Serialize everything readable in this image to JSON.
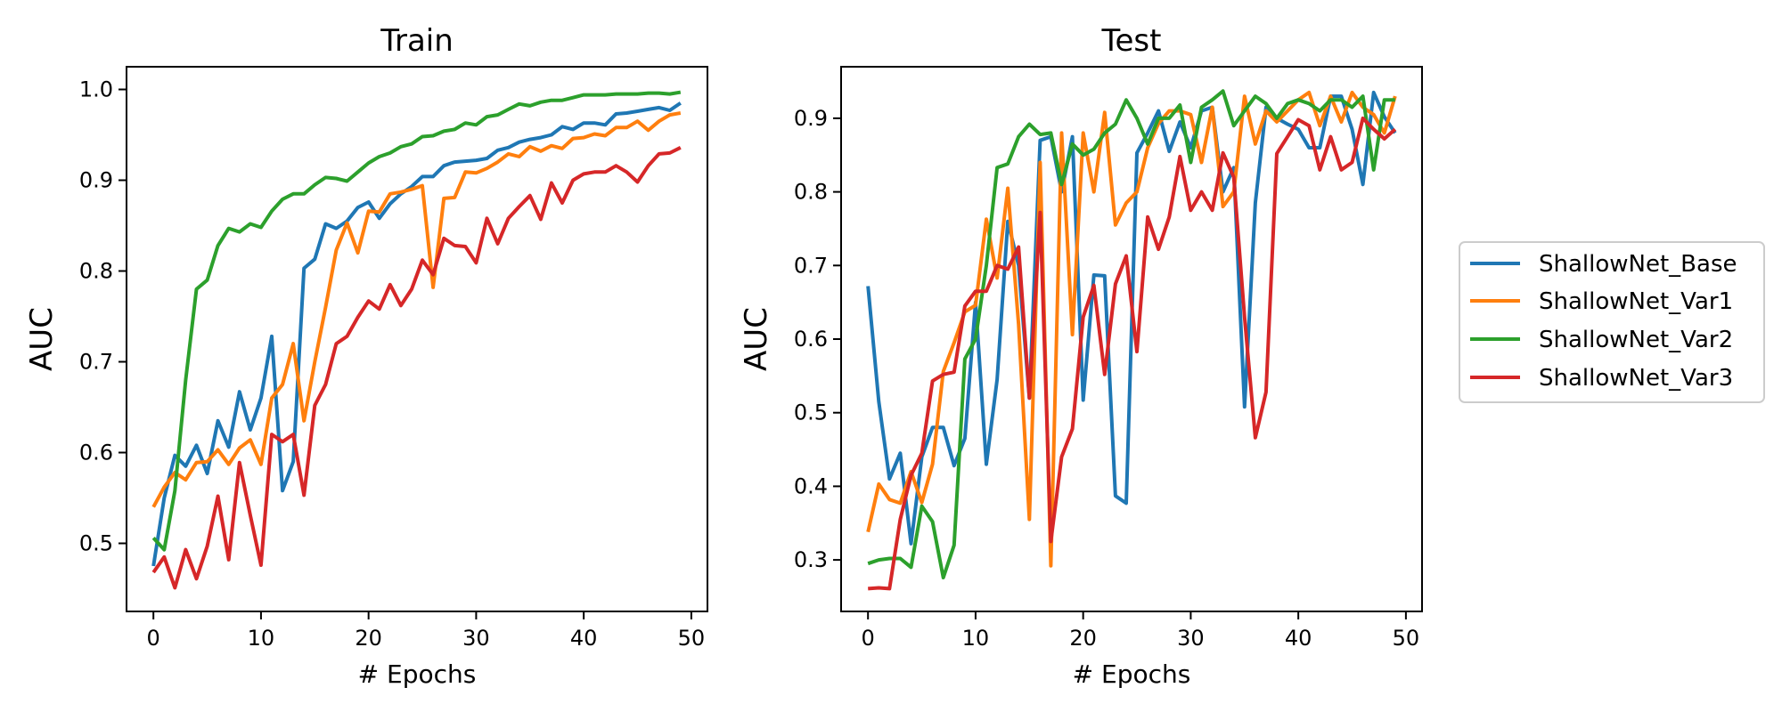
{
  "legend": {
    "placement": "right",
    "entries": [
      {
        "name": "ShallowNet_Base",
        "color": "#1f77b4"
      },
      {
        "name": "ShallowNet_Var1",
        "color": "#ff7f0e"
      },
      {
        "name": "ShallowNet_Var2",
        "color": "#2ca02c"
      },
      {
        "name": "ShallowNet_Var3",
        "color": "#d62728"
      }
    ]
  },
  "chart_data": [
    {
      "type": "line",
      "title": "Train",
      "xlabel": "# Epochs",
      "ylabel": "AUC",
      "xlim": [
        -2.5,
        51.5
      ],
      "ylim": [
        0.425,
        1.025
      ],
      "xticks": [
        0,
        10,
        20,
        30,
        40,
        50
      ],
      "yticks": [
        0.5,
        0.6,
        0.7,
        0.8,
        0.9,
        1.0
      ],
      "ytick_labels": [
        "0.5",
        "0.6",
        "0.7",
        "0.8",
        "0.9",
        "1.0"
      ],
      "grid": false,
      "x": [
        0,
        1,
        2,
        3,
        4,
        5,
        6,
        7,
        8,
        9,
        10,
        11,
        12,
        13,
        14,
        15,
        16,
        17,
        18,
        19,
        20,
        21,
        22,
        23,
        24,
        25,
        26,
        27,
        28,
        29,
        30,
        31,
        32,
        33,
        34,
        35,
        36,
        37,
        38,
        39,
        40,
        41,
        42,
        43,
        44,
        45,
        46,
        47,
        48,
        49
      ],
      "series": [
        {
          "name": "ShallowNet_Base",
          "color": "#1f77b4",
          "values": [
            0.475,
            0.55,
            0.597,
            0.585,
            0.608,
            0.577,
            0.635,
            0.606,
            0.667,
            0.625,
            0.66,
            0.728,
            0.558,
            0.59,
            0.803,
            0.813,
            0.852,
            0.847,
            0.855,
            0.87,
            0.876,
            0.858,
            0.874,
            0.885,
            0.893,
            0.904,
            0.904,
            0.916,
            0.92,
            0.921,
            0.922,
            0.924,
            0.933,
            0.936,
            0.942,
            0.945,
            0.947,
            0.95,
            0.959,
            0.956,
            0.963,
            0.963,
            0.961,
            0.973,
            0.974,
            0.976,
            0.978,
            0.98,
            0.977,
            0.985
          ]
        },
        {
          "name": "ShallowNet_Var1",
          "color": "#ff7f0e",
          "values": [
            0.54,
            0.562,
            0.578,
            0.57,
            0.589,
            0.59,
            0.603,
            0.587,
            0.605,
            0.614,
            0.587,
            0.66,
            0.675,
            0.72,
            0.635,
            0.7,
            0.76,
            0.823,
            0.853,
            0.82,
            0.866,
            0.865,
            0.885,
            0.887,
            0.89,
            0.894,
            0.782,
            0.88,
            0.881,
            0.909,
            0.908,
            0.913,
            0.92,
            0.929,
            0.926,
            0.937,
            0.932,
            0.938,
            0.935,
            0.946,
            0.947,
            0.951,
            0.949,
            0.958,
            0.958,
            0.965,
            0.955,
            0.965,
            0.972,
            0.974
          ]
        },
        {
          "name": "ShallowNet_Var2",
          "color": "#2ca02c",
          "values": [
            0.506,
            0.493,
            0.558,
            0.68,
            0.78,
            0.79,
            0.828,
            0.847,
            0.843,
            0.852,
            0.848,
            0.866,
            0.879,
            0.885,
            0.885,
            0.895,
            0.903,
            0.902,
            0.899,
            0.909,
            0.919,
            0.926,
            0.93,
            0.937,
            0.94,
            0.948,
            0.949,
            0.954,
            0.956,
            0.963,
            0.961,
            0.97,
            0.972,
            0.978,
            0.984,
            0.982,
            0.986,
            0.988,
            0.988,
            0.991,
            0.994,
            0.994,
            0.994,
            0.995,
            0.995,
            0.995,
            0.996,
            0.996,
            0.995,
            0.997
          ]
        },
        {
          "name": "ShallowNet_Var3",
          "color": "#d62728",
          "values": [
            0.468,
            0.485,
            0.451,
            0.493,
            0.461,
            0.497,
            0.552,
            0.482,
            0.589,
            0.531,
            0.476,
            0.62,
            0.612,
            0.62,
            0.553,
            0.652,
            0.675,
            0.72,
            0.728,
            0.749,
            0.767,
            0.758,
            0.785,
            0.762,
            0.78,
            0.812,
            0.796,
            0.836,
            0.828,
            0.827,
            0.809,
            0.858,
            0.83,
            0.858,
            0.871,
            0.883,
            0.857,
            0.897,
            0.875,
            0.9,
            0.907,
            0.909,
            0.909,
            0.916,
            0.909,
            0.898,
            0.916,
            0.929,
            0.93,
            0.936
          ]
        }
      ]
    },
    {
      "type": "line",
      "title": "Test",
      "xlabel": "# Epochs",
      "ylabel": "AUC",
      "xlim": [
        -2.5,
        51.5
      ],
      "ylim": [
        0.23,
        0.97
      ],
      "xticks": [
        0,
        10,
        20,
        30,
        40,
        50
      ],
      "yticks": [
        0.3,
        0.4,
        0.5,
        0.6,
        0.7,
        0.8,
        0.9
      ],
      "ytick_labels": [
        "0.3",
        "0.4",
        "0.5",
        "0.6",
        "0.7",
        "0.8",
        "0.9"
      ],
      "grid": false,
      "x": [
        0,
        1,
        2,
        3,
        4,
        5,
        6,
        7,
        8,
        9,
        10,
        11,
        12,
        13,
        14,
        15,
        16,
        17,
        18,
        19,
        20,
        21,
        22,
        23,
        24,
        25,
        26,
        27,
        28,
        29,
        30,
        31,
        32,
        33,
        34,
        35,
        36,
        37,
        38,
        39,
        40,
        41,
        42,
        43,
        44,
        45,
        46,
        47,
        48,
        49
      ],
      "series": [
        {
          "name": "ShallowNet_Base",
          "color": "#1f77b4",
          "values": [
            0.672,
            0.515,
            0.41,
            0.445,
            0.322,
            0.44,
            0.48,
            0.48,
            0.428,
            0.465,
            0.65,
            0.43,
            0.545,
            0.76,
            0.7,
            0.52,
            0.87,
            0.875,
            0.8,
            0.875,
            0.517,
            0.687,
            0.686,
            0.387,
            0.377,
            0.853,
            0.88,
            0.91,
            0.855,
            0.895,
            0.86,
            0.91,
            0.915,
            0.8,
            0.833,
            0.508,
            0.785,
            0.915,
            0.9,
            0.892,
            0.885,
            0.86,
            0.86,
            0.93,
            0.93,
            0.885,
            0.81,
            0.935,
            0.902,
            0.88
          ]
        },
        {
          "name": "ShallowNet_Var1",
          "color": "#ff7f0e",
          "values": [
            0.338,
            0.403,
            0.382,
            0.377,
            0.42,
            0.378,
            0.43,
            0.556,
            0.595,
            0.637,
            0.646,
            0.763,
            0.683,
            0.805,
            0.62,
            0.355,
            0.84,
            0.292,
            0.88,
            0.606,
            0.88,
            0.8,
            0.908,
            0.755,
            0.785,
            0.8,
            0.86,
            0.893,
            0.91,
            0.91,
            0.905,
            0.84,
            0.915,
            0.78,
            0.8,
            0.93,
            0.865,
            0.91,
            0.895,
            0.91,
            0.925,
            0.935,
            0.89,
            0.93,
            0.895,
            0.935,
            0.915,
            0.905,
            0.88,
            0.93
          ]
        },
        {
          "name": "ShallowNet_Var2",
          "color": "#2ca02c",
          "values": [
            0.295,
            0.3,
            0.302,
            0.302,
            0.29,
            0.373,
            0.352,
            0.276,
            0.32,
            0.573,
            0.6,
            0.7,
            0.833,
            0.838,
            0.875,
            0.892,
            0.878,
            0.88,
            0.81,
            0.865,
            0.85,
            0.858,
            0.88,
            0.892,
            0.925,
            0.9,
            0.865,
            0.9,
            0.9,
            0.918,
            0.84,
            0.915,
            0.925,
            0.937,
            0.89,
            0.91,
            0.93,
            0.92,
            0.9,
            0.92,
            0.925,
            0.92,
            0.91,
            0.925,
            0.925,
            0.915,
            0.93,
            0.83,
            0.925,
            0.925
          ]
        },
        {
          "name": "ShallowNet_Var3",
          "color": "#d62728",
          "values": [
            0.261,
            0.262,
            0.261,
            0.355,
            0.415,
            0.445,
            0.543,
            0.552,
            0.555,
            0.645,
            0.665,
            0.665,
            0.7,
            0.695,
            0.725,
            0.52,
            0.772,
            0.325,
            0.44,
            0.478,
            0.63,
            0.673,
            0.552,
            0.675,
            0.713,
            0.583,
            0.766,
            0.722,
            0.766,
            0.848,
            0.775,
            0.8,
            0.775,
            0.853,
            0.82,
            0.63,
            0.466,
            0.528,
            0.852,
            0.875,
            0.898,
            0.89,
            0.83,
            0.875,
            0.83,
            0.84,
            0.9,
            0.885,
            0.872,
            0.885
          ]
        }
      ]
    }
  ]
}
